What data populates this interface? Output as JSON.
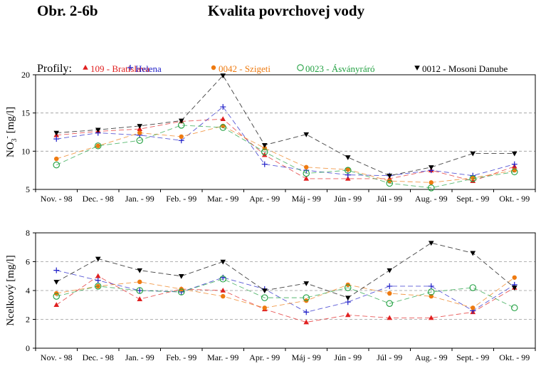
{
  "header": {
    "figure_number": "Obr. 2-6b",
    "title": "Kvalita povrchovej vody"
  },
  "legend": {
    "title": "Profily:"
  },
  "chart_data": [
    {
      "type": "line",
      "ylabel_main": "NO",
      "ylabel_sub": "3",
      "ylabel_sup": "-",
      "ylabel_unit": "[mg/l]",
      "ylim": [
        5,
        20
      ],
      "yticks": [
        5,
        10,
        15,
        20
      ],
      "dashed_grid": [
        10,
        15
      ],
      "categories": [
        "Nov. - 98",
        "Dec. - 98",
        "Jan. - 99",
        "Feb. - 99",
        "Mar. - 99",
        "Apr. - 99",
        "Máj - 99",
        "Jún - 99",
        "Júl - 99",
        "Aug. - 99",
        "Sept. - 99",
        "Okt. - 99"
      ],
      "series": [
        {
          "name": "109 - Bratislava",
          "color": "#e02020",
          "marker": "triangle-up",
          "values": [
            12.1,
            12.6,
            12.9,
            13.9,
            14.2,
            9.5,
            6.4,
            6.4,
            6.4,
            7.5,
            6.1,
            8.0
          ]
        },
        {
          "name": "Helena",
          "color": "#2020c8",
          "marker": "plus",
          "values": [
            11.6,
            12.4,
            12.1,
            11.4,
            15.8,
            8.3,
            7.5,
            6.9,
            6.8,
            7.5,
            6.8,
            8.3
          ]
        },
        {
          "name": "0042 - Szigeti",
          "color": "#ee7a10",
          "marker": "filled-circle",
          "values": [
            9.0,
            10.7,
            12.4,
            11.9,
            13.3,
            10.4,
            7.9,
            7.6,
            6.1,
            5.9,
            6.5,
            7.5
          ]
        },
        {
          "name": "0023 - Ásványráró",
          "color": "#20a040",
          "marker": "open-circle",
          "values": [
            8.2,
            10.7,
            11.4,
            13.4,
            13.1,
            9.9,
            7.1,
            7.5,
            5.8,
            5.2,
            6.4,
            7.3
          ]
        },
        {
          "name": "0012 - Mosoni Danube",
          "color": "#000000",
          "marker": "triangle-down",
          "values": [
            12.4,
            12.8,
            13.3,
            14.0,
            19.9,
            10.8,
            12.2,
            9.2,
            6.8,
            7.9,
            9.7,
            9.7
          ]
        }
      ]
    },
    {
      "type": "line",
      "ylabel": "Ncelkový [mg/l]",
      "ylim": [
        0,
        8
      ],
      "yticks": [
        0,
        2,
        4,
        6,
        8
      ],
      "dashed_grid": [
        2,
        4,
        6
      ],
      "categories": [
        "Nov. - 98",
        "Dec. - 98",
        "Jan. - 99",
        "Feb. - 99",
        "Mar. - 99",
        "Apr. - 99",
        "Máj - 99",
        "Jún - 99",
        "Júl - 99",
        "Aug. - 99",
        "Sept. - 99",
        "Okt. - 99"
      ],
      "series": [
        {
          "name": "109 - Bratislava",
          "color": "#e02020",
          "marker": "triangle-up",
          "values": [
            3.0,
            5.0,
            3.4,
            4.1,
            4.0,
            2.7,
            1.8,
            2.3,
            2.1,
            2.1,
            2.5,
            4.2
          ]
        },
        {
          "name": "Helena",
          "color": "#2020c8",
          "marker": "plus",
          "values": [
            5.4,
            4.7,
            4.0,
            3.9,
            4.9,
            4.1,
            2.5,
            3.2,
            4.3,
            4.3,
            2.6,
            4.4
          ]
        },
        {
          "name": "0042 - Szigeti",
          "color": "#ee7a10",
          "marker": "filled-circle",
          "values": [
            3.8,
            4.3,
            4.6,
            4.1,
            3.6,
            2.8,
            3.3,
            4.4,
            3.8,
            3.6,
            2.8,
            4.9
          ]
        },
        {
          "name": "0023 - Ásványráró",
          "color": "#20a040",
          "marker": "open-circle",
          "values": [
            3.6,
            4.3,
            4.0,
            3.9,
            4.8,
            3.5,
            3.5,
            4.2,
            3.1,
            3.9,
            4.2,
            2.8
          ]
        },
        {
          "name": "0012 - Mosoni Danube",
          "color": "#000000",
          "marker": "triangle-down",
          "values": [
            4.6,
            6.2,
            5.4,
            5.0,
            6.0,
            4.0,
            4.5,
            3.5,
            5.4,
            7.3,
            6.6,
            4.2
          ]
        }
      ]
    }
  ]
}
